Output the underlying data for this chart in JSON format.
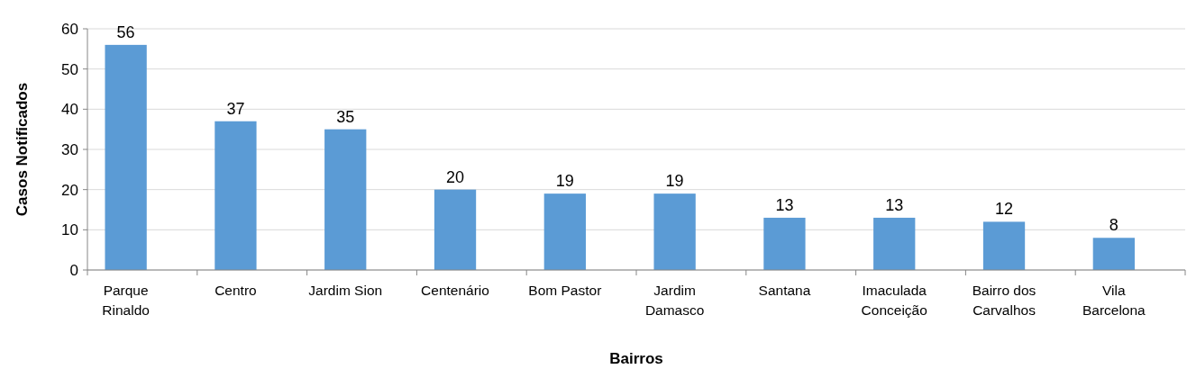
{
  "chart_data": {
    "type": "bar",
    "xlabel": "Bairros",
    "ylabel": "Casos Notificados",
    "categories": [
      "Parque Rinaldo",
      "Centro",
      "Jardim Sion",
      "Centenário",
      "Bom Pastor",
      "Jardim Damasco",
      "Santana",
      "Imaculada Conceição",
      "Bairro dos Carvalhos",
      "Vila Barcelona"
    ],
    "values": [
      56,
      37,
      35,
      20,
      19,
      19,
      13,
      13,
      12,
      8
    ],
    "color": "#5b9bd5",
    "ylim": [
      0,
      60
    ],
    "yticks": [
      0,
      10,
      20,
      30,
      40,
      50,
      60
    ],
    "grid": "y",
    "data_labels": true
  }
}
